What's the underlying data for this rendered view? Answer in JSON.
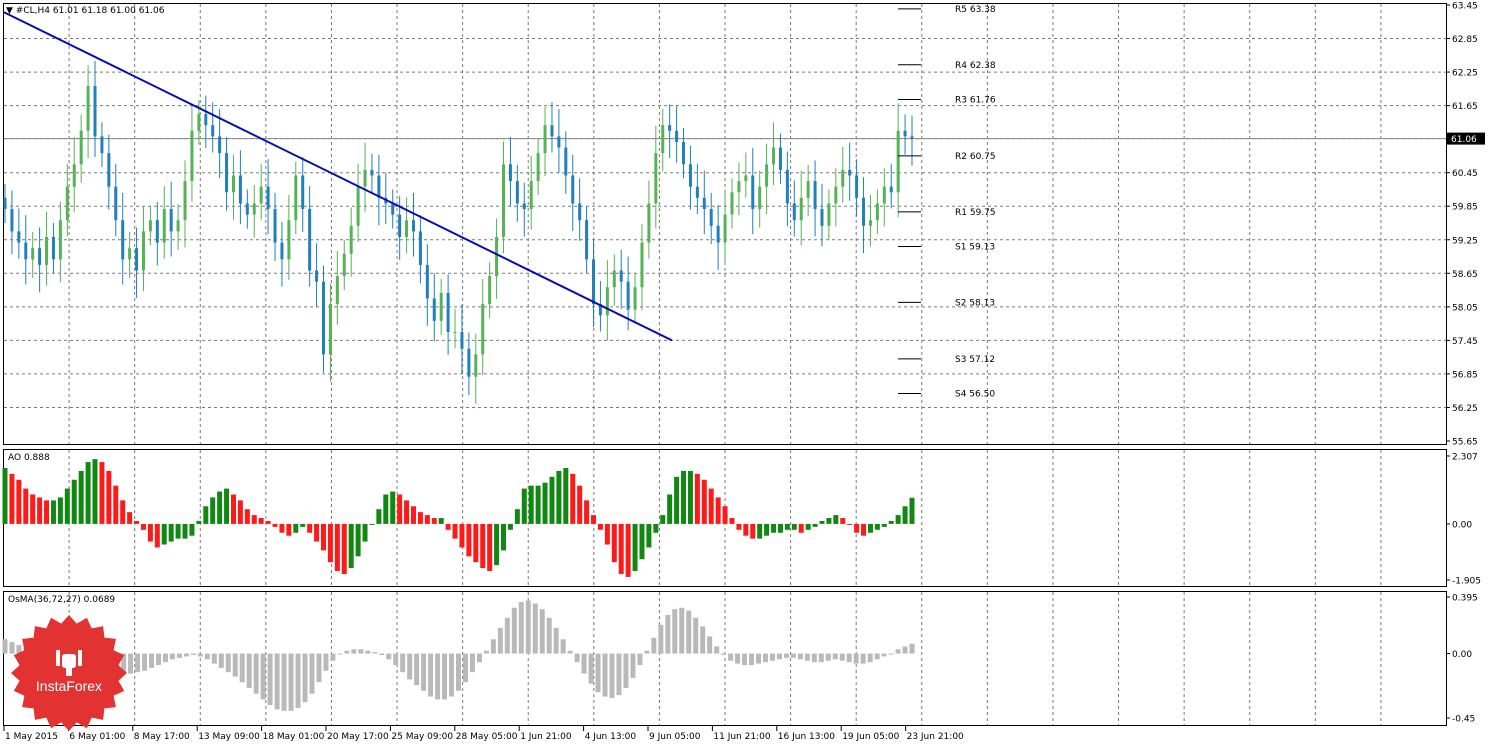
{
  "window": {
    "header": "▼ #CL,H4  61.01 61.18 61.00 61.06",
    "current_price": "61.06"
  },
  "colors": {
    "candle_up": "#55b255",
    "candle_down": "#1f7fbf",
    "trendline": "#0a0ab4",
    "ao_up": "#118811",
    "ao_down": "#ff1a1a",
    "osma": "#b9b9b9",
    "grid": "#7a7a7a",
    "logo": "#e23232"
  },
  "price_axis": {
    "ticks": [
      "63.45",
      "62.85",
      "62.25",
      "61.65",
      "61.06",
      "60.45",
      "59.85",
      "59.25",
      "58.65",
      "58.05",
      "57.45",
      "56.85",
      "56.25",
      "55.65"
    ],
    "ylim": [
      55.65,
      63.45
    ]
  },
  "pivot_levels": [
    {
      "label": "R5 63.38",
      "value": 63.38
    },
    {
      "label": "R4 62.38",
      "value": 62.38
    },
    {
      "label": "R3 61.76",
      "value": 61.76
    },
    {
      "label": "R2 60.75",
      "value": 60.75
    },
    {
      "label": "R1 59.75",
      "value": 59.75
    },
    {
      "label": "S1 59.13",
      "value": 59.13
    },
    {
      "label": "S2 58.13",
      "value": 58.13
    },
    {
      "label": "S3 57.12",
      "value": 57.12
    },
    {
      "label": "S4 56.50",
      "value": 56.5
    }
  ],
  "time_axis": {
    "labels": [
      "1 May 2015",
      "6 May 01:00",
      "8 May 17:00",
      "13 May 09:00",
      "18 May 01:00",
      "20 May 17:00",
      "25 May 09:00",
      "28 May 05:00",
      "1 Jun 21:00",
      "4 Jun 13:00",
      "9 Jun 05:00",
      "11 Jun 21:00",
      "16 Jun 13:00",
      "19 Jun 05:00",
      "23 Jun 21:00"
    ]
  },
  "ao_panel": {
    "label": "AO 0.888",
    "ticks": [
      "2.307",
      "0.00",
      "-1.905"
    ]
  },
  "osma_panel": {
    "label": "OsMA(36,72,27) 0.0689",
    "ticks": [
      "0.395",
      "0.00",
      "-0.45"
    ]
  },
  "logo": {
    "text": "InstaForex"
  },
  "chart_data": [
    {
      "type": "candlestick",
      "title": "#CL,H4",
      "ylim": [
        55.65,
        63.45
      ],
      "grid": true,
      "close_series": [
        59.8,
        59.4,
        59.2,
        58.9,
        59.1,
        58.8,
        59.3,
        58.9,
        59.6,
        60.2,
        60.6,
        61.2,
        62.0,
        61.1,
        60.8,
        60.2,
        59.6,
        58.9,
        59.1,
        58.7,
        59.4,
        59.6,
        59.2,
        59.8,
        59.4,
        59.6,
        60.3,
        61.2,
        61.5,
        61.3,
        61.1,
        60.8,
        60.1,
        60.4,
        59.9,
        59.7,
        59.9,
        60.2,
        59.8,
        59.2,
        58.9,
        59.6,
        60.4,
        59.8,
        58.7,
        58.5,
        57.2,
        58.1,
        58.6,
        59.0,
        59.5,
        60.2,
        60.5,
        60.4,
        60.0,
        59.9,
        59.7,
        59.3,
        59.6,
        59.4,
        58.8,
        58.2,
        57.8,
        58.3,
        57.6,
        57.6,
        57.3,
        56.8,
        57.2,
        58.1,
        58.6,
        59.3,
        60.6,
        60.3,
        59.9,
        59.8,
        60.3,
        60.8,
        61.3,
        61.1,
        60.9,
        60.4,
        59.9,
        59.6,
        58.9,
        58.1,
        57.9,
        58.4,
        58.7,
        58.5,
        58.0,
        58.4,
        59.2,
        59.9,
        60.8,
        61.3,
        61.2,
        61.0,
        60.6,
        60.2,
        60.0,
        59.8,
        59.5,
        59.2,
        59.7,
        60.1,
        60.3,
        60.4,
        59.8,
        60.2,
        60.6,
        60.9,
        60.5,
        59.9,
        59.6,
        60.0,
        60.3,
        59.8,
        59.5,
        59.9,
        60.2,
        60.5,
        60.4,
        60.0,
        59.5,
        59.6,
        59.9,
        60.2,
        60.1,
        61.2,
        61.1,
        61.06
      ],
      "pivot_levels": [
        63.38,
        62.38,
        61.76,
        60.75,
        59.75,
        59.13,
        58.13,
        57.12,
        56.5
      ],
      "trendline": {
        "from": "1 May 2015",
        "to": "9 Jun 05:00",
        "start_value": 63.32,
        "end_value": 57.45
      }
    },
    {
      "type": "bar",
      "title": "AO 0.888",
      "ylim": [
        -1.905,
        2.307
      ],
      "values": [
        1.9,
        1.7,
        1.5,
        1.2,
        1.0,
        0.9,
        0.8,
        0.8,
        0.9,
        1.2,
        1.5,
        1.8,
        2.1,
        2.2,
        2.1,
        1.8,
        1.3,
        0.8,
        0.4,
        0.1,
        -0.2,
        -0.6,
        -0.8,
        -0.7,
        -0.6,
        -0.5,
        -0.5,
        -0.4,
        0.1,
        0.6,
        0.9,
        1.1,
        1.2,
        1.0,
        0.8,
        0.5,
        0.3,
        0.2,
        0.1,
        -0.1,
        -0.3,
        -0.4,
        -0.3,
        -0.1,
        -0.3,
        -0.6,
        -0.9,
        -1.3,
        -1.6,
        -1.7,
        -1.5,
        -1.1,
        -0.6,
        0.0,
        0.5,
        1.0,
        1.1,
        1.0,
        0.8,
        0.6,
        0.4,
        0.3,
        0.2,
        0.2,
        -0.2,
        -0.5,
        -0.8,
        -1.1,
        -1.3,
        -1.5,
        -1.6,
        -1.4,
        -0.9,
        -0.2,
        0.5,
        1.2,
        1.3,
        1.3,
        1.4,
        1.6,
        1.8,
        1.9,
        1.7,
        1.3,
        0.8,
        0.3,
        -0.2,
        -0.7,
        -1.3,
        -1.7,
        -1.8,
        -1.6,
        -1.2,
        -0.8,
        -0.3,
        0.3,
        1.0,
        1.6,
        1.8,
        1.8,
        1.7,
        1.5,
        1.2,
        0.9,
        0.6,
        0.2,
        -0.2,
        -0.4,
        -0.5,
        -0.5,
        -0.4,
        -0.3,
        -0.3,
        -0.2,
        -0.2,
        -0.3,
        -0.2,
        -0.1,
        0.1,
        0.2,
        0.3,
        0.2,
        0.0,
        -0.3,
        -0.4,
        -0.3,
        -0.2,
        -0.1,
        0.1,
        0.3,
        0.6,
        0.888
      ]
    },
    {
      "type": "bar",
      "title": "OsMA(36,72,27) 0.0689",
      "ylim": [
        -0.45,
        0.395
      ],
      "values": [
        0.1,
        0.08,
        0.06,
        0.05,
        0.04,
        0.03,
        0.02,
        0.01,
        0.0,
        -0.02,
        -0.04,
        -0.06,
        -0.08,
        -0.1,
        -0.12,
        -0.13,
        -0.14,
        -0.14,
        -0.14,
        -0.13,
        -0.12,
        -0.1,
        -0.08,
        -0.06,
        -0.04,
        -0.03,
        -0.02,
        -0.01,
        -0.02,
        -0.04,
        -0.07,
        -0.1,
        -0.13,
        -0.16,
        -0.2,
        -0.24,
        -0.28,
        -0.32,
        -0.36,
        -0.39,
        -0.4,
        -0.4,
        -0.38,
        -0.34,
        -0.28,
        -0.2,
        -0.12,
        -0.05,
        0.0,
        0.02,
        0.03,
        0.03,
        0.02,
        0.01,
        -0.01,
        -0.04,
        -0.08,
        -0.13,
        -0.18,
        -0.22,
        -0.26,
        -0.3,
        -0.32,
        -0.32,
        -0.3,
        -0.26,
        -0.2,
        -0.13,
        -0.06,
        0.02,
        0.1,
        0.18,
        0.25,
        0.32,
        0.36,
        0.37,
        0.35,
        0.31,
        0.25,
        0.18,
        0.1,
        0.02,
        -0.06,
        -0.14,
        -0.21,
        -0.27,
        -0.3,
        -0.31,
        -0.29,
        -0.24,
        -0.17,
        -0.08,
        0.02,
        0.11,
        0.2,
        0.27,
        0.31,
        0.32,
        0.3,
        0.25,
        0.19,
        0.12,
        0.05,
        -0.01,
        -0.05,
        -0.07,
        -0.08,
        -0.08,
        -0.07,
        -0.06,
        -0.05,
        -0.04,
        -0.03,
        -0.03,
        -0.04,
        -0.05,
        -0.06,
        -0.06,
        -0.05,
        -0.04,
        -0.05,
        -0.06,
        -0.07,
        -0.07,
        -0.06,
        -0.04,
        -0.02,
        0.0,
        0.03,
        0.05,
        0.0689
      ]
    }
  ]
}
